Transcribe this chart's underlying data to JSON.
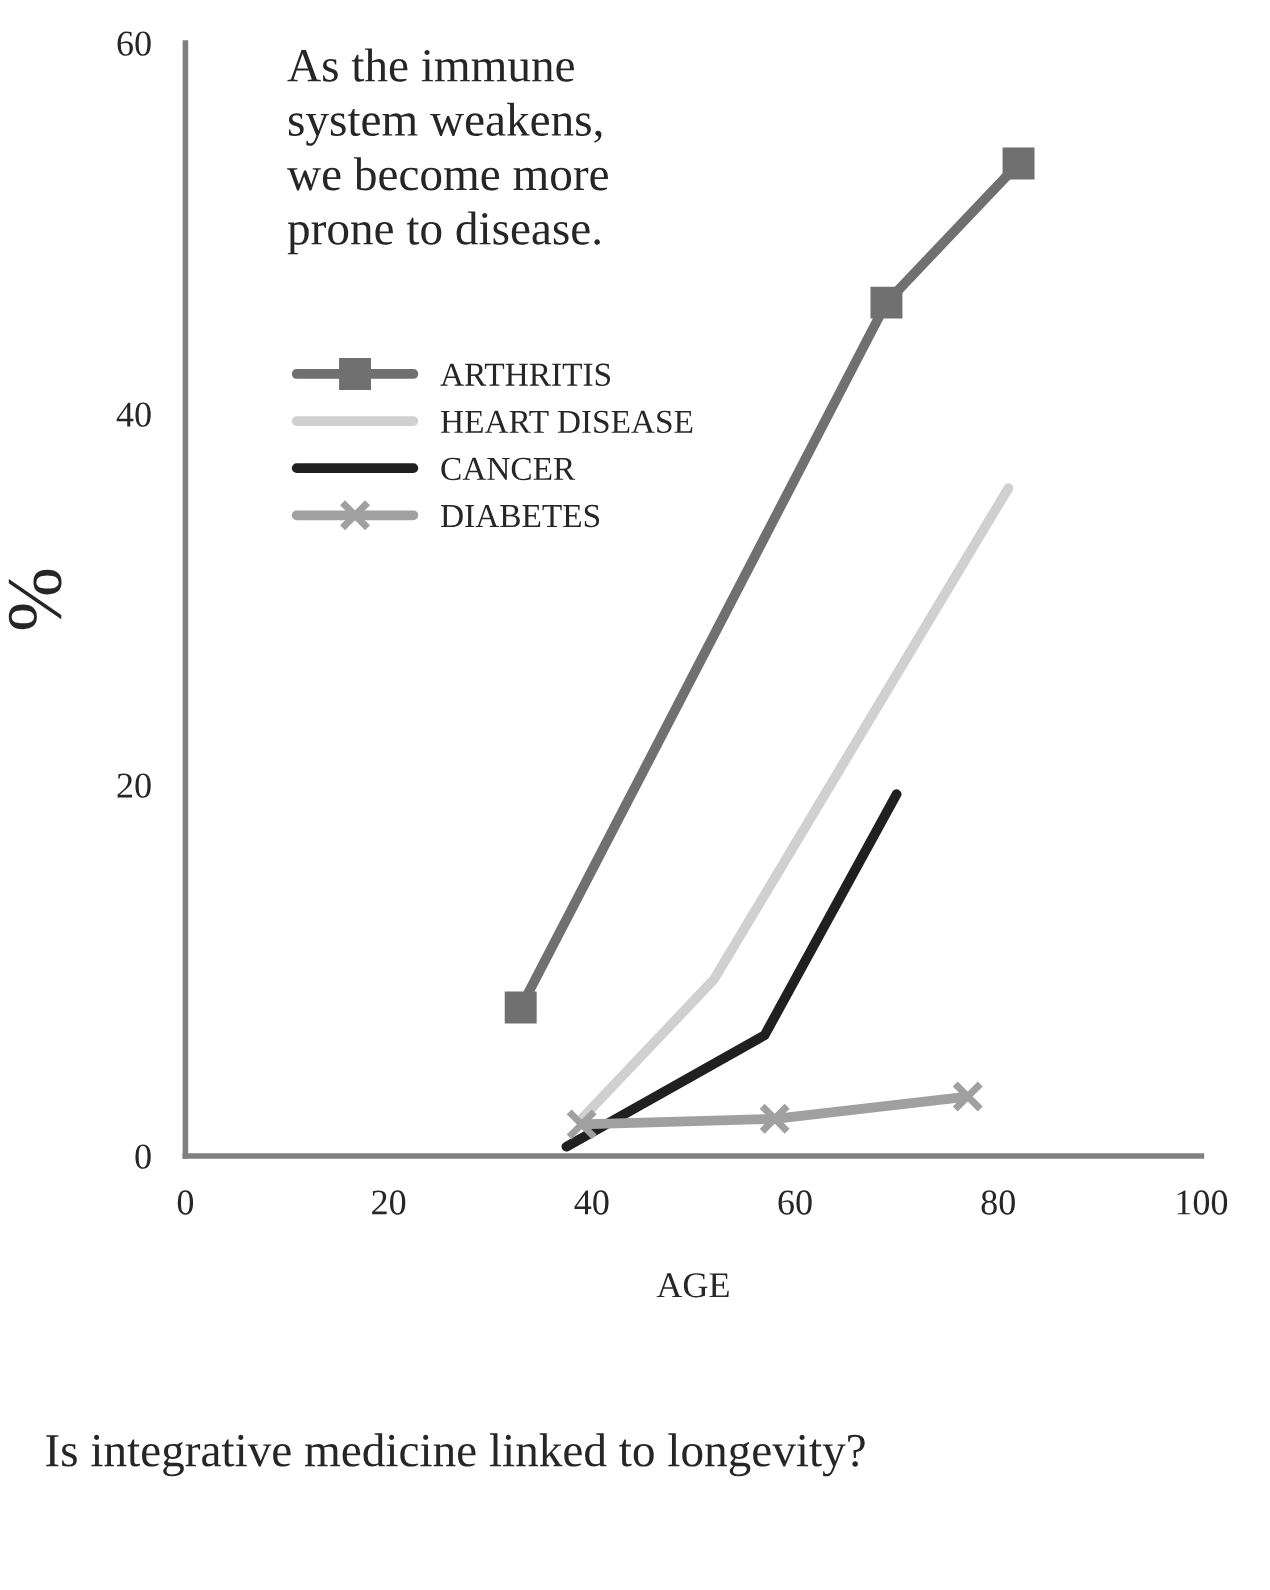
{
  "chart_data": {
    "type": "line",
    "xlabel": "AGE",
    "ylabel": "%",
    "xlim": [
      0,
      100
    ],
    "ylim": [
      0,
      60
    ],
    "xticks": [
      0,
      20,
      40,
      60,
      80,
      100
    ],
    "yticks": [
      0,
      20,
      40,
      60
    ],
    "grid": false,
    "legend": "top left",
    "annotations": [
      "As the immune\nsystem weakens,\nwe become more\nprone to disease.",
      "Is integrative medicine linked to longevity?"
    ],
    "series": [
      {
        "name": "ARTHRITIS",
        "color": "#707070",
        "marker": "square",
        "x": [
          33,
          69,
          82
        ],
        "values": [
          8,
          46,
          53.5
        ]
      },
      {
        "name": "HEART DISEASE",
        "color": "#d0d0d0",
        "marker": "none",
        "x": [
          39,
          52,
          81
        ],
        "values": [
          2,
          9.5,
          36
        ]
      },
      {
        "name": "CANCER",
        "color": "#202020",
        "marker": "none",
        "x": [
          37.5,
          57,
          70
        ],
        "values": [
          0.5,
          6.5,
          19.5
        ]
      },
      {
        "name": "DIABETES",
        "color": "#a0a0a0",
        "marker": "cross",
        "x": [
          39,
          58,
          77
        ],
        "values": [
          1.7,
          2,
          3.2
        ]
      }
    ]
  }
}
